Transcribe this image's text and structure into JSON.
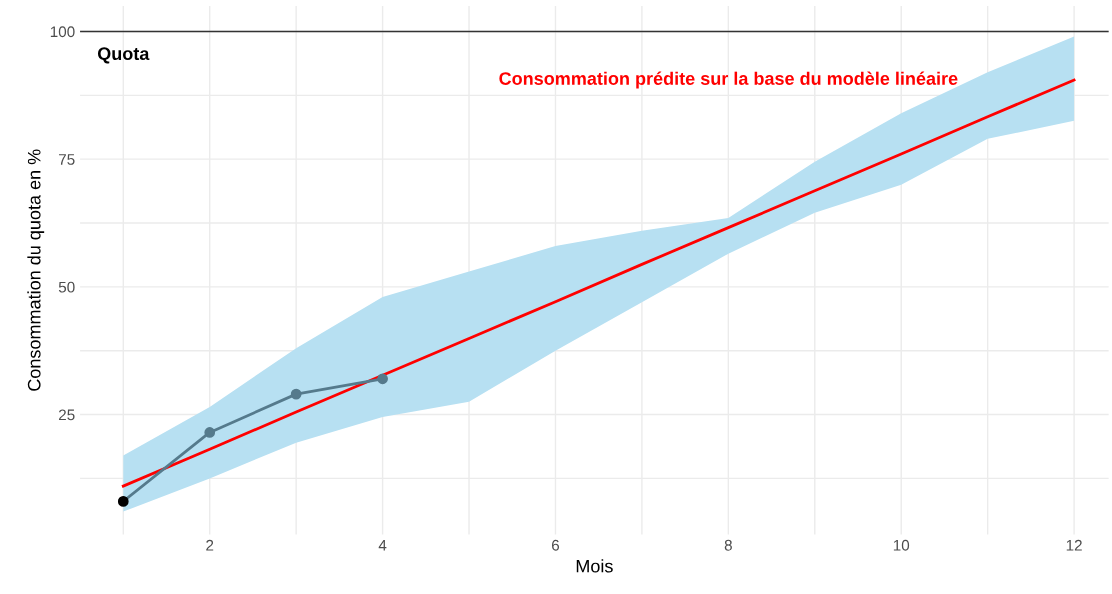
{
  "chart_data": {
    "type": "line",
    "xlabel": "Mois",
    "ylabel": "Consommation du quota en %",
    "xlim": [
      0.5,
      12.4
    ],
    "ylim": [
      1.5,
      105
    ],
    "xticks": [
      {
        "value": 1,
        "label": null
      },
      2,
      {
        "value": 3,
        "label": null
      },
      4,
      {
        "value": 5,
        "label": null
      },
      6,
      {
        "value": 7,
        "label": null
      },
      8,
      {
        "value": 9,
        "label": null
      },
      10,
      {
        "value": 11,
        "label": null
      },
      12
    ],
    "yticks": [
      {
        "value": 12.5,
        "label": null
      },
      25,
      {
        "value": 37.5,
        "label": null
      },
      50,
      {
        "value": 62.5,
        "label": null
      },
      75,
      {
        "value": 87.5,
        "label": null
      },
      100
    ],
    "grid": true,
    "legend": false,
    "series": [
      {
        "name": "Consommation prédite sur la base du modèle linéaire",
        "color": "#ff0000",
        "x": [
          1,
          2,
          3,
          4,
          5,
          6,
          7,
          8,
          9,
          10,
          11,
          12
        ],
        "values": [
          11,
          18.2,
          25.5,
          32.7,
          39.9,
          47.1,
          54.4,
          61.6,
          68.8,
          76,
          83.3,
          90.5
        ],
        "lower": [
          6,
          12.5,
          19.5,
          24.5,
          27.5,
          37.5,
          47,
          56.5,
          64.5,
          70,
          79,
          82.5
        ],
        "upper": [
          17,
          26.5,
          38,
          48,
          53,
          58,
          61,
          63.5,
          74.5,
          84,
          92,
          99
        ]
      },
      {
        "color": "#557a8c",
        "marker": "circle",
        "colors": [
          "#000000",
          "#557a8c",
          "#557a8c",
          "#557a8c"
        ],
        "x": [
          1,
          2,
          3,
          4
        ],
        "values": [
          8,
          21.5,
          29,
          32
        ]
      }
    ],
    "ref_lines": [
      {
        "axis": "y",
        "value": 100,
        "label": "Quota",
        "color": "#333333"
      }
    ]
  }
}
